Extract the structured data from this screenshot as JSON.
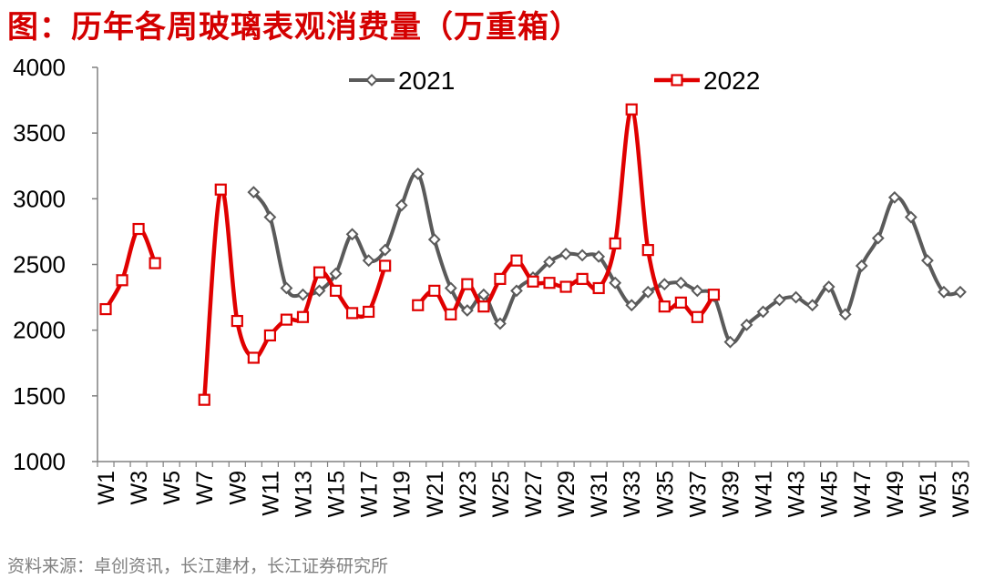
{
  "title": "图：历年各周玻璃表观消费量（万重箱）",
  "source": "资料来源：卓创资讯，长江建材，长江证券研究所",
  "colors": {
    "s2021": "#5a5a5a",
    "s2022": "#e00000",
    "title": "#d40000"
  },
  "chart_data": {
    "type": "line",
    "title": "历年各周玻璃表观消费量（万重箱）",
    "ylim": [
      1000,
      4000
    ],
    "yticks": [
      1000,
      1500,
      2000,
      2500,
      3000,
      3500,
      4000
    ],
    "x": [
      "W1",
      "W2",
      "W3",
      "W4",
      "W5",
      "W6",
      "W7",
      "W8",
      "W9",
      "W10",
      "W11",
      "W12",
      "W13",
      "W14",
      "W15",
      "W16",
      "W17",
      "W18",
      "W19",
      "W20",
      "W21",
      "W22",
      "W23",
      "W24",
      "W25",
      "W26",
      "W27",
      "W28",
      "W29",
      "W30",
      "W31",
      "W32",
      "W33",
      "W34",
      "W35",
      "W36",
      "W37",
      "W38",
      "W39",
      "W40",
      "W41",
      "W42",
      "W43",
      "W44",
      "W45",
      "W46",
      "W47",
      "W48",
      "W49",
      "W50",
      "W51",
      "W52",
      "W53"
    ],
    "xtick_labels": [
      "W1",
      "W3",
      "W5",
      "W7",
      "W9",
      "W11",
      "W13",
      "W15",
      "W17",
      "W19",
      "W21",
      "W23",
      "W25",
      "W27",
      "W29",
      "W31",
      "W33",
      "W35",
      "W37",
      "W39",
      "W41",
      "W43",
      "W45",
      "W47",
      "W49",
      "W51",
      "W53"
    ],
    "legend": {
      "position": "top"
    },
    "series": [
      {
        "name": "2021",
        "marker": "diamond",
        "values": [
          null,
          null,
          null,
          null,
          null,
          null,
          null,
          null,
          null,
          3050,
          2860,
          2320,
          2270,
          2300,
          2430,
          2730,
          2530,
          2610,
          2950,
          3190,
          2690,
          2320,
          2150,
          2270,
          2050,
          2300,
          2400,
          2520,
          2580,
          2570,
          2560,
          2360,
          2190,
          2290,
          2350,
          2360,
          2300,
          2260,
          1910,
          2040,
          2140,
          2230,
          2250,
          2190,
          2330,
          2120,
          2490,
          2700,
          3010,
          2860,
          2530,
          2290,
          2290
        ]
      },
      {
        "name": "2022",
        "marker": "square",
        "values": [
          2160,
          2380,
          2770,
          2510,
          null,
          null,
          1470,
          3070,
          2070,
          1790,
          1960,
          2080,
          2100,
          2440,
          2300,
          2130,
          2140,
          2490,
          null,
          2190,
          2300,
          2120,
          2350,
          2180,
          2390,
          2530,
          2370,
          2360,
          2330,
          2390,
          2320,
          2660,
          3680,
          2610,
          2180,
          2210,
          2100,
          2270,
          null,
          null,
          null,
          null,
          null,
          null,
          null,
          null,
          null,
          null,
          null,
          null,
          null,
          null,
          null
        ]
      }
    ]
  }
}
